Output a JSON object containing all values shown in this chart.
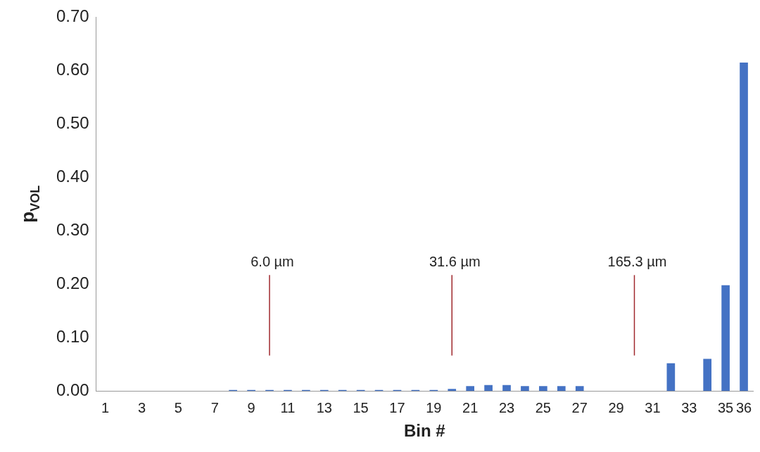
{
  "chart_data": {
    "type": "bar",
    "xlabel": "Bin #",
    "ylabel": "p$_{VOL}$",
    "x": [
      1,
      2,
      3,
      4,
      5,
      6,
      7,
      8,
      9,
      10,
      11,
      12,
      13,
      14,
      15,
      16,
      17,
      18,
      19,
      20,
      21,
      22,
      23,
      24,
      25,
      26,
      27,
      28,
      29,
      30,
      31,
      32,
      33,
      34,
      35,
      36
    ],
    "values": [
      0,
      0,
      0,
      0,
      0,
      0,
      0,
      0.002,
      0.002,
      0.002,
      0.002,
      0.002,
      0.002,
      0.002,
      0.002,
      0.002,
      0.002,
      0.002,
      0.002,
      0.004,
      0.009,
      0.011,
      0.011,
      0.009,
      0.009,
      0.009,
      0.009,
      0,
      0,
      0,
      0,
      0.052,
      0,
      0.06,
      0.198,
      0.615
    ],
    "color": "#4472c4",
    "xlim": [
      0.5,
      36.5
    ],
    "xticks": [
      1,
      3,
      5,
      7,
      9,
      11,
      13,
      15,
      17,
      19,
      21,
      23,
      25,
      27,
      29,
      31,
      33,
      35,
      36
    ],
    "ylim": [
      0,
      0.7
    ],
    "yticks": [
      {
        "value": 0,
        "label": "0.00"
      },
      {
        "value": 0.1,
        "label": "0.10"
      },
      {
        "value": 0.2,
        "label": "0.20"
      },
      {
        "value": 0.3,
        "label": "0.30"
      },
      {
        "value": 0.4,
        "label": "0.40"
      },
      {
        "value": 0.5,
        "label": "0.50"
      },
      {
        "value": 0.6,
        "label": "0.60"
      },
      {
        "value": 0.7,
        "label": "0.70"
      }
    ],
    "grid": false,
    "legend": false,
    "ref_lines": [
      {
        "axis": "x",
        "value": 10,
        "label": "6.0 µm",
        "color": "#a0282d"
      },
      {
        "axis": "x",
        "value": 20,
        "label": "31.6 µm",
        "color": "#a0282d"
      },
      {
        "axis": "x",
        "value": 30,
        "label": "165.3 µm",
        "color": "#a0282d"
      }
    ]
  }
}
